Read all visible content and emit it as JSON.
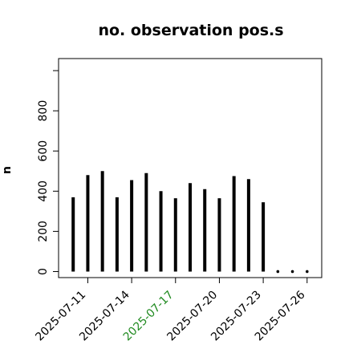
{
  "chart_data": {
    "type": "bar",
    "title": "no. observation pos.s",
    "xlabel": "",
    "ylabel": "n",
    "x_unit": "day",
    "x": [
      "2025-07-10",
      "2025-07-11",
      "2025-07-12",
      "2025-07-13",
      "2025-07-14",
      "2025-07-15",
      "2025-07-16",
      "2025-07-17",
      "2025-07-18",
      "2025-07-19",
      "2025-07-20",
      "2025-07-21",
      "2025-07-22",
      "2025-07-23",
      "2025-07-24",
      "2025-07-25",
      "2025-07-26"
    ],
    "values": [
      370,
      480,
      500,
      370,
      455,
      490,
      400,
      365,
      440,
      410,
      365,
      475,
      460,
      345,
      0,
      0,
      0
    ],
    "xlim": [
      "2025-07-09",
      "2025-07-27"
    ],
    "ylim": [
      -30,
      1060
    ],
    "xticks": [
      {
        "label": "2025-07-11",
        "date": "2025-07-11",
        "color": "#000000"
      },
      {
        "label": "2025-07-14",
        "date": "2025-07-14",
        "color": "#000000"
      },
      {
        "label": "2025-07-17",
        "date": "2025-07-17",
        "color": "#228b22"
      },
      {
        "label": "2025-07-20",
        "date": "2025-07-20",
        "color": "#000000"
      },
      {
        "label": "2025-07-23",
        "date": "2025-07-23",
        "color": "#000000"
      },
      {
        "label": "2025-07-26",
        "date": "2025-07-26",
        "color": "#000000"
      }
    ],
    "yticks": [
      0,
      200,
      400,
      600,
      800
    ],
    "bar_color": "#000000",
    "grid": false
  }
}
